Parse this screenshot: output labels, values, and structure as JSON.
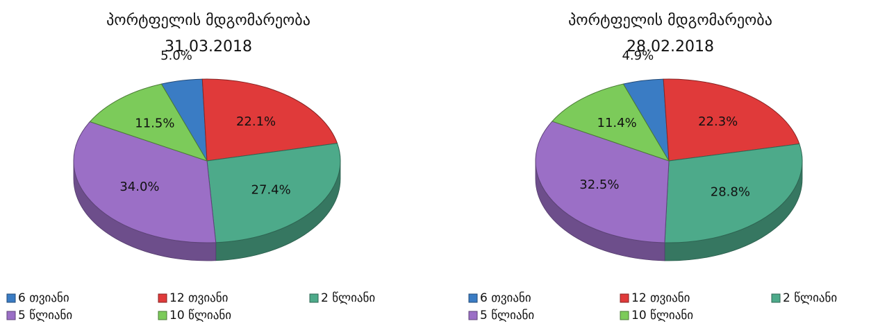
{
  "chart_data": [
    {
      "type": "pie",
      "title": "პორტფელის მდგომარეობა",
      "subtitle": "31.03.2018",
      "categories": [
        "6 თვიანი",
        "12 თვიანი",
        "2 წლიანი",
        "5 წლიანი",
        "10 წლიანი"
      ],
      "values": [
        5.0,
        22.1,
        27.4,
        34.0,
        11.5
      ],
      "value_labels": [
        "5.0%",
        "22.1%",
        "27.4%",
        "34.0%",
        "11.5%"
      ],
      "colors": [
        "#3a7cc4",
        "#e03a3a",
        "#4daa8a",
        "#9b6fc6",
        "#7ccb5a"
      ]
    },
    {
      "type": "pie",
      "title": "პორტფელის მდგომარეობა",
      "subtitle": "28.02.2018",
      "categories": [
        "6 თვიანი",
        "12 თვიანი",
        "2 წლიანი",
        "5 წლიანი",
        "10 წლიანი"
      ],
      "values": [
        4.9,
        22.3,
        28.8,
        32.5,
        11.4
      ],
      "value_labels": [
        "4.9%",
        "22.3%",
        "28.8%",
        "32.5%",
        "11.4%"
      ],
      "colors": [
        "#3a7cc4",
        "#e03a3a",
        "#4daa8a",
        "#9b6fc6",
        "#7ccb5a"
      ]
    }
  ]
}
